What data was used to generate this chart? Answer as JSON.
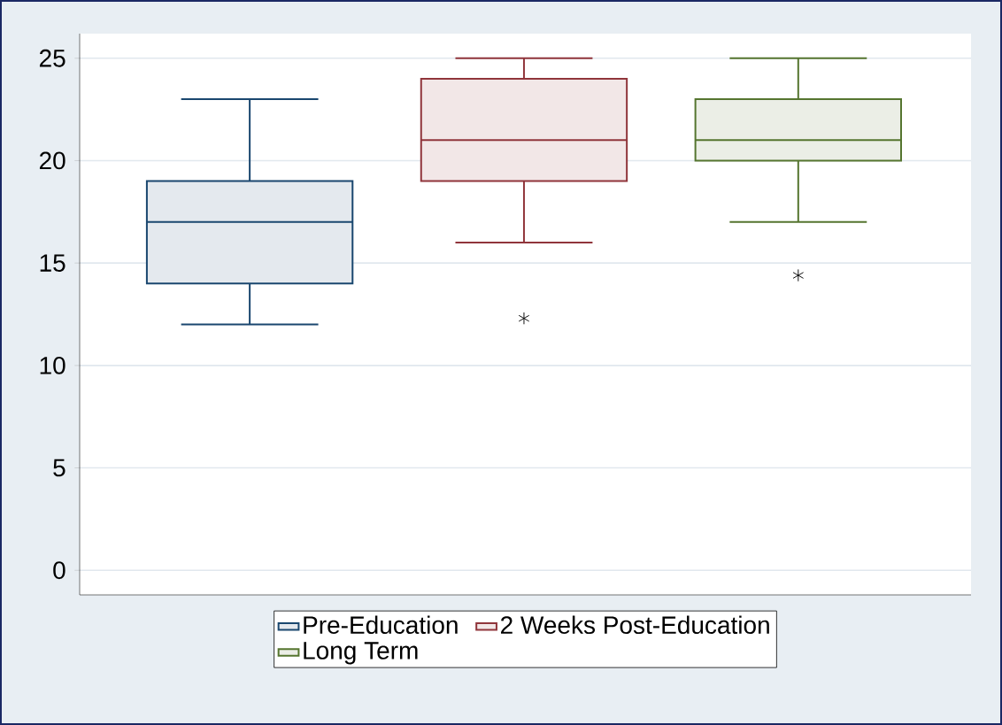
{
  "chart_data": {
    "type": "box",
    "categories": [
      null,
      null,
      null
    ],
    "series": [
      {
        "name": "Pre-Education",
        "color": "#1a476f",
        "boxes": [
          {
            "low": 12,
            "q1": 14,
            "median": 17,
            "q3": 19,
            "high": 23
          },
          null,
          null
        ]
      },
      {
        "name": "2 Weeks Post-Education",
        "color": "#90353b",
        "boxes": [
          null,
          {
            "low": 16,
            "q1": 19,
            "median": 21,
            "q3": 24,
            "high": 25,
            "outliers": [
              12.3
            ]
          },
          null
        ]
      },
      {
        "name": "Long Term",
        "color": "#55752f",
        "boxes": [
          null,
          null,
          {
            "low": 17,
            "q1": 20,
            "median": 21,
            "q3": 23,
            "high": 25,
            "outliers": [
              14.4
            ]
          }
        ]
      }
    ],
    "ylim": [
      -1.2,
      26.2
    ],
    "yticks": [
      0,
      5,
      10,
      15,
      20,
      25
    ],
    "grid": "y",
    "legend": "bottom",
    "tick_labels": "y"
  }
}
